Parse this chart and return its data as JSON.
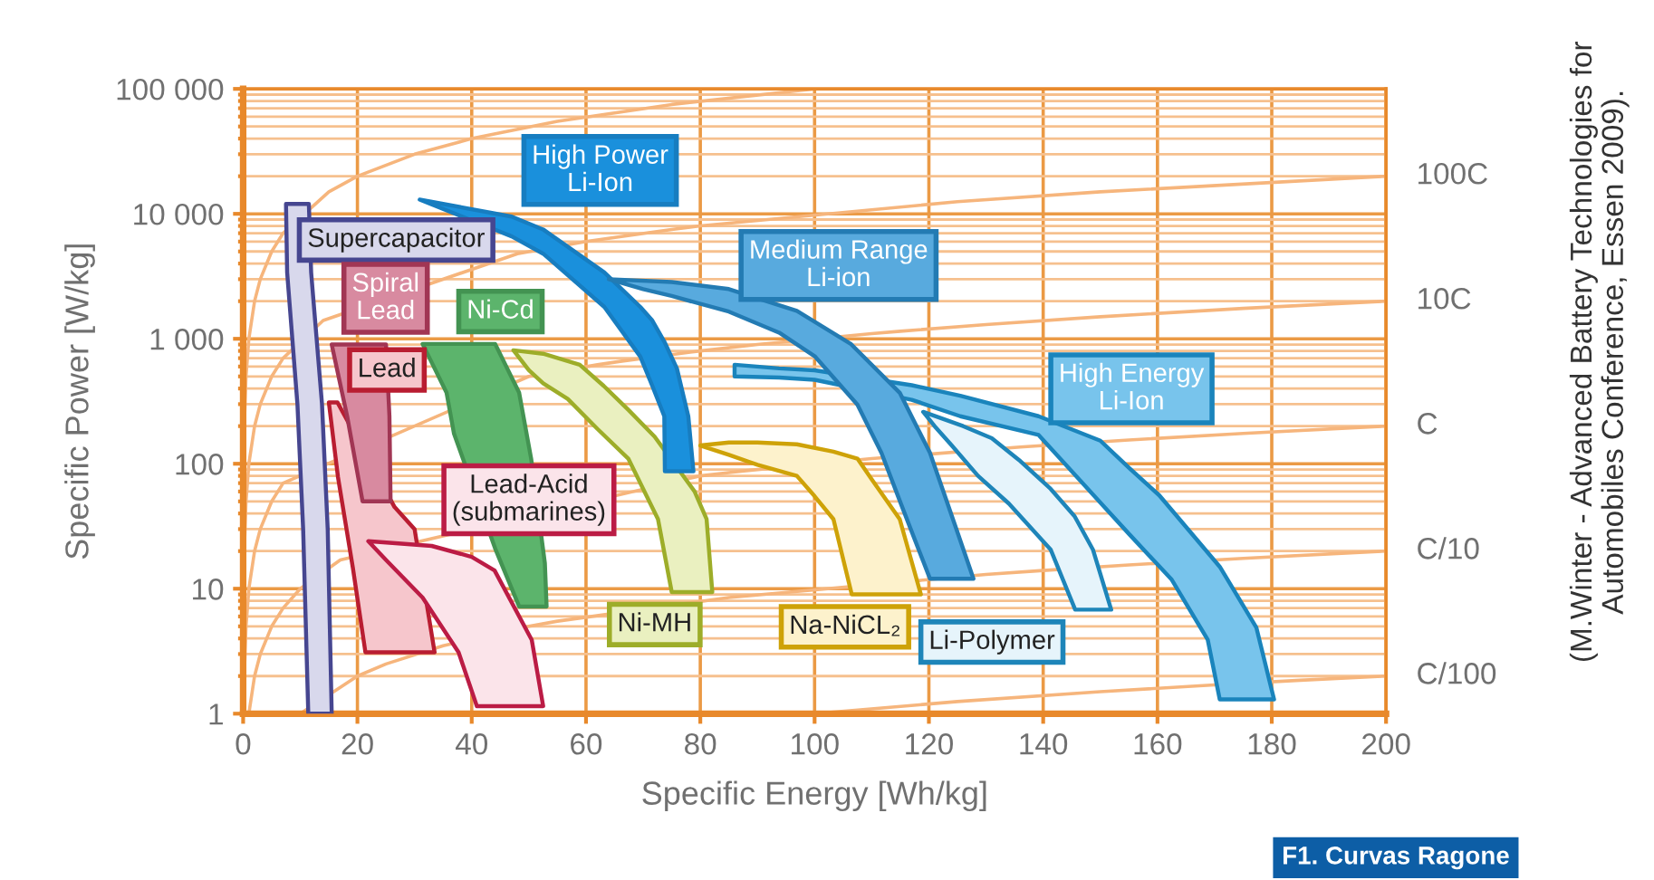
{
  "chart_data": {
    "type": "area",
    "xlabel": "Specific Energy [Wh/kg]",
    "ylabel": "Specific Power [W/kg]",
    "xlim": [
      0,
      200
    ],
    "xticks": [
      0,
      20,
      40,
      60,
      80,
      100,
      120,
      140,
      160,
      180,
      200
    ],
    "log": "y",
    "ylim": [
      1,
      100000
    ],
    "yticks": [
      1,
      {
        "value": 2,
        "label": null
      },
      {
        "value": 3,
        "label": null
      },
      {
        "value": 4,
        "label": null
      },
      {
        "value": 5,
        "label": null
      },
      {
        "value": 6,
        "label": null
      },
      {
        "value": 7,
        "label": null
      },
      {
        "value": 8,
        "label": null
      },
      {
        "value": 9,
        "label": null
      },
      10,
      {
        "value": 20,
        "label": null
      },
      {
        "value": 30,
        "label": null
      },
      {
        "value": 40,
        "label": null
      },
      {
        "value": 50,
        "label": null
      },
      {
        "value": 60,
        "label": null
      },
      {
        "value": 70,
        "label": null
      },
      {
        "value": 80,
        "label": null
      },
      {
        "value": 90,
        "label": null
      },
      100,
      {
        "value": 200,
        "label": null
      },
      {
        "value": 300,
        "label": null
      },
      {
        "value": 400,
        "label": null
      },
      {
        "value": 500,
        "label": null
      },
      {
        "value": 600,
        "label": null
      },
      {
        "value": 700,
        "label": null
      },
      {
        "value": 800,
        "label": null
      },
      {
        "value": 900,
        "label": null
      },
      {
        "value": 1000,
        "label": "1 000"
      },
      {
        "value": 2000,
        "label": null
      },
      {
        "value": 3000,
        "label": null
      },
      {
        "value": 4000,
        "label": null
      },
      {
        "value": 5000,
        "label": null
      },
      {
        "value": 6000,
        "label": null
      },
      {
        "value": 7000,
        "label": null
      },
      {
        "value": 8000,
        "label": null
      },
      {
        "value": 9000,
        "label": null
      },
      {
        "value": 10000,
        "label": "10 000"
      },
      {
        "value": 20000,
        "label": null
      },
      {
        "value": 30000,
        "label": null
      },
      {
        "value": 40000,
        "label": null
      },
      {
        "value": 50000,
        "label": null
      },
      {
        "value": 60000,
        "label": null
      },
      {
        "value": 70000,
        "label": null
      },
      {
        "value": 80000,
        "label": null
      },
      {
        "value": 90000,
        "label": null
      },
      {
        "value": 100000,
        "label": "100 000"
      }
    ],
    "grid": true,
    "series": [
      {
        "type": "line",
        "color": "#f6b57c",
        "x": [
          0.01,
          0.02,
          0.05,
          0.1,
          0.2,
          0.5,
          1,
          2,
          3,
          5,
          7,
          15,
          20,
          30,
          40,
          55,
          75,
          100
        ],
        "values": [
          10,
          20,
          50,
          100,
          200,
          500,
          1000,
          2000,
          3000,
          5000,
          7000,
          15000,
          20000,
          30000,
          40000,
          55000,
          75000,
          100000
        ]
      },
      {
        "type": "line",
        "name": "100C",
        "color": "#f6b57c",
        "x": [
          0.01,
          0.02,
          0.05,
          0.1,
          0.2,
          0.5,
          1,
          2,
          3,
          5,
          7,
          14,
          48,
          60,
          75,
          80,
          125,
          150,
          200
        ],
        "values": [
          1,
          2,
          5,
          10,
          20,
          50,
          100,
          200,
          300,
          500,
          700,
          1400,
          4800,
          6000,
          7500,
          8000,
          12500,
          15000,
          20000
        ]
      },
      {
        "type": "line",
        "name": "10C",
        "color": "#f6b57c",
        "x": [
          0.1,
          0.2,
          0.5,
          1,
          2,
          3,
          5,
          7,
          50,
          62,
          66,
          80,
          90,
          110,
          115,
          130,
          150,
          175,
          200
        ],
        "values": [
          1,
          2,
          5,
          10,
          20,
          30,
          50,
          70,
          500,
          620,
          660,
          800,
          900,
          1100,
          1150,
          1300,
          1500,
          1750,
          2000
        ]
      },
      {
        "type": "line",
        "name": "C",
        "color": "#f6b57c",
        "x": [
          1,
          2,
          3,
          5,
          7,
          10,
          17,
          80,
          85,
          88,
          110,
          136,
          155,
          175,
          200
        ],
        "values": [
          1,
          2,
          3,
          5,
          7,
          10,
          17,
          80,
          85,
          88,
          110,
          136,
          155,
          175,
          200
        ]
      },
      {
        "type": "line",
        "name": "C/10",
        "color": "#f6b57c",
        "x": [
          10,
          20,
          25,
          35,
          50,
          55,
          85,
          130,
          140,
          155,
          175,
          200
        ],
        "values": [
          1,
          2,
          2.5,
          3.5,
          5,
          5.5,
          8.5,
          13,
          14,
          15.5,
          17.5,
          20
        ]
      },
      {
        "type": "line",
        "name": "C/100",
        "color": "#f6b57c",
        "x": [
          100,
          125,
          150,
          170,
          185,
          200
        ],
        "values": [
          1,
          1.25,
          1.5,
          1.7,
          1.85,
          2
        ]
      },
      {
        "color": "#d8d8ec",
        "x": [
          7.5,
          11.5,
          11.9,
          13.8,
          14.8,
          15.5,
          11.4,
          10.5,
          9.5,
          7.7
        ],
        "values": [
          12000,
          12000,
          3400,
          300,
          30,
          1,
          1,
          30,
          300,
          3400
        ]
      },
      {
        "color": "#f6c6cc",
        "x": [
          15,
          16.5,
          26.5,
          30,
          33.5,
          21.4,
          19.2,
          16.6
        ],
        "values": [
          310,
          310,
          45,
          30,
          3.1,
          3.1,
          14.7,
          78
        ]
      },
      {
        "color": "#fbe4ea",
        "x": [
          21.9,
          33,
          40,
          44,
          50.5,
          52.5,
          40.9,
          37.7,
          31.4,
          25
        ],
        "values": [
          24,
          22,
          18,
          14,
          3.9,
          1.15,
          1.15,
          3.1,
          8.5,
          17
        ]
      },
      {
        "color": "#d88aa0",
        "x": [
          15.5,
          25,
          25.6,
          25.8,
          20.9,
          18.2
        ],
        "values": [
          900,
          900,
          240,
          50,
          50,
          240
        ]
      },
      {
        "color": "#5cb46c",
        "x": [
          31.4,
          35.6,
          44.1,
          48.3,
          50.4,
          52.8,
          53.1,
          48.3,
          44.1,
          36.9,
          35.6
        ],
        "values": [
          910,
          910,
          910,
          370,
          110,
          16,
          7.2,
          7.2,
          21,
          174,
          370
        ]
      },
      {
        "color": "#eaf0c0",
        "x": [
          47.3,
          52.5,
          58.9,
          63.1,
          67.4,
          72,
          79,
          81.1,
          82.1,
          75,
          72.6,
          67.4,
          62,
          56.8,
          52.5,
          50
        ],
        "values": [
          810,
          760,
          620,
          420,
          270,
          165,
          60,
          36,
          9.4,
          9.4,
          36,
          110,
          190,
          330,
          440,
          560
        ]
      },
      {
        "color": "#fdf2cc",
        "x": [
          80,
          85,
          90,
          96.9,
          103.3,
          107.5,
          110,
          114.9,
          118.6,
          106.5,
          103.3,
          100,
          96.9,
          90,
          85
        ],
        "values": [
          140,
          148,
          148,
          143,
          125,
          110,
          75,
          36,
          9,
          9,
          36,
          55,
          80,
          98,
          118
        ]
      },
      {
        "color": "#1a90dc",
        "x": [
          30.9,
          47,
          52.5,
          63.2,
          69.5,
          71.6,
          73.7,
          75.9,
          77.9,
          78.8,
          73.8,
          73.7,
          71.6,
          69.5,
          63.2,
          52.5,
          47
        ],
        "values": [
          13000,
          9500,
          7500,
          3400,
          1800,
          1400,
          950,
          580,
          240,
          87,
          87,
          240,
          420,
          720,
          1800,
          4800,
          6600
        ]
      },
      {
        "color": "#e6f4fb",
        "x": [
          119,
          126,
          131,
          136,
          141.3,
          145.5,
          148.7,
          151.9,
          145.6,
          141.3,
          134,
          128.6,
          124,
          121
        ],
        "values": [
          260,
          200,
          160,
          105,
          63,
          38,
          20.6,
          6.8,
          6.8,
          20.6,
          48,
          80,
          140,
          200
        ]
      },
      {
        "color": "#78c4ec",
        "x": [
          86,
          93.8,
          100,
          117,
          125.5,
          139.2,
          150,
          155,
          160.3,
          170.9,
          177.3,
          180.4,
          170.9,
          168.8,
          162.5,
          155,
          149.8,
          139.2,
          125.5,
          117,
          100,
          93.8,
          86
        ],
        "values": [
          620,
          580,
          560,
          425,
          350,
          240,
          153,
          93,
          56,
          15,
          4.9,
          1.3,
          1.3,
          3.9,
          11.8,
          27.5,
          50,
          170,
          240,
          325,
          470,
          490,
          500
        ]
      },
      {
        "color": "#58aade",
        "x": [
          64,
          75,
          85,
          96.9,
          106.4,
          114.9,
          120.2,
          124.5,
          127.8,
          120.2,
          115.5,
          111.7,
          107.5,
          100.1,
          93.8,
          85,
          75,
          70
        ],
        "values": [
          3000,
          2850,
          2500,
          1670,
          905,
          370,
          122,
          33,
          12,
          12,
          43,
          122,
          297,
          720,
          1120,
          1650,
          2200,
          2500
        ]
      }
    ],
    "annotations": [
      {
        "text": "Supercapacitor",
        "x": 7.7,
        "y": 3400
      },
      {
        "text": "Lead",
        "x": 16.5,
        "y": 310
      },
      {
        "text": "Lead-Acid\n(submarines)",
        "x": 33,
        "y": 22
      },
      {
        "text": "Spiral\nLead",
        "x": 15.5,
        "y": 900
      },
      {
        "text": "Ni-Cd",
        "x": 35.6,
        "y": 910
      },
      {
        "text": "Ni-MH",
        "x": 82.1,
        "y": 9.4
      },
      {
        "text": "Na-NiCL₂",
        "x": 118.6,
        "y": 9
      },
      {
        "text": "High Power\nLi-Ion",
        "x": 47,
        "y": 9500
      },
      {
        "text": "Li-Polymer",
        "x": 145.6,
        "y": 6.8
      },
      {
        "text": "High Energy\nLi-Ion",
        "x": 139.2,
        "y": 170
      },
      {
        "text": "Medium Range\nLi-ion",
        "x": 85,
        "y": 1650
      },
      "(M.Winter - Advanced Battery Technologies for Automobiles Conference, Essen 2009).",
      "F1. Curvas Ragone"
    ]
  }
}
